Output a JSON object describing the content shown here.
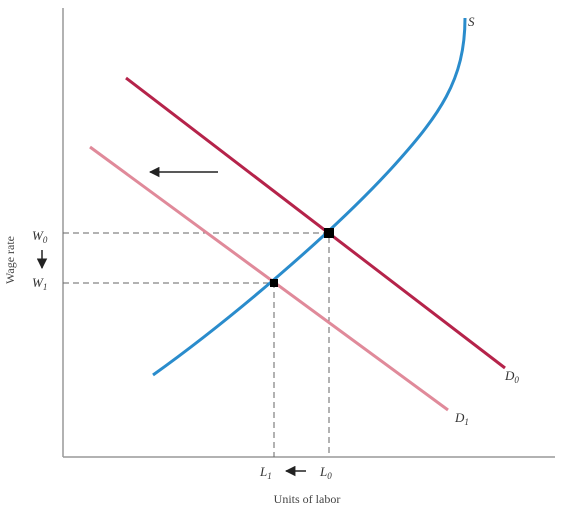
{
  "supply_label": "S",
  "demand_labels": [
    {
      "letter": "D",
      "sub": "0"
    },
    {
      "letter": "D",
      "sub": "1"
    }
  ],
  "wage_labels": [
    {
      "letter": "W",
      "sub": "0"
    },
    {
      "letter": "W",
      "sub": "1"
    }
  ],
  "labor_labels": [
    {
      "letter": "L",
      "sub": "1"
    },
    {
      "letter": "L",
      "sub": "0"
    }
  ],
  "x_axis_title": "Units of labor",
  "y_axis_title": "Wage rate"
}
